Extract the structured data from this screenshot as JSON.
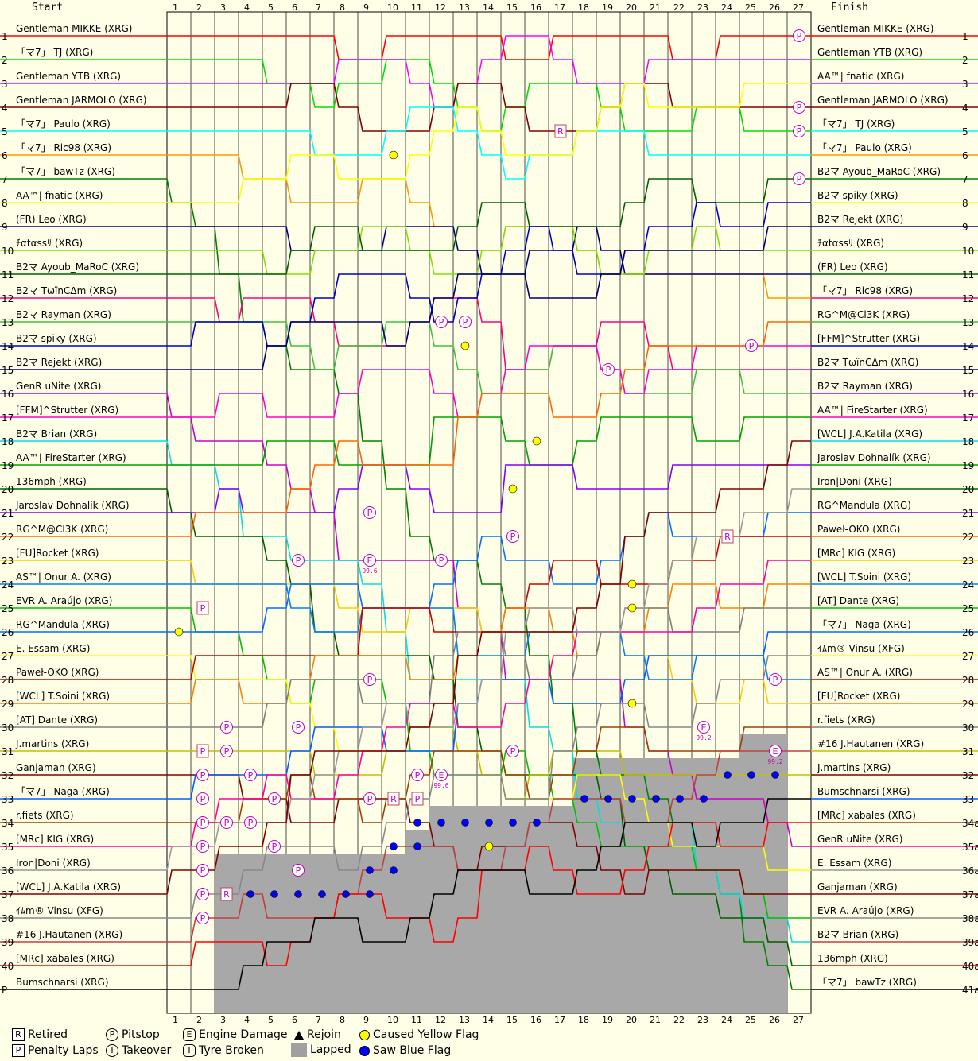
{
  "chart_data": {
    "type": "line",
    "headers": {
      "start": "Start",
      "finish": "Finish"
    },
    "laps": [
      1,
      2,
      3,
      4,
      5,
      6,
      7,
      8,
      9,
      10,
      11,
      12,
      13,
      14,
      15,
      16,
      17,
      18,
      19,
      20,
      21,
      22,
      23,
      24,
      25,
      26,
      27
    ],
    "start_positions": [
      "1",
      "2",
      "3",
      "4",
      "5",
      "6",
      "7",
      "8",
      "9",
      "10",
      "11",
      "12",
      "13",
      "14",
      "15",
      "16",
      "17",
      "18",
      "19",
      "20",
      "21",
      "22",
      "23",
      "24",
      "25",
      "26",
      "27",
      "28",
      "29",
      "30",
      "31",
      "32",
      "33",
      "34",
      "35",
      "36",
      "37",
      "38",
      "39",
      "40",
      "P"
    ],
    "finish_positions": [
      "1",
      "2",
      "3",
      "4",
      "5",
      "6",
      "7",
      "8",
      "9",
      "10",
      "11",
      "12",
      "13",
      "14",
      "15",
      "16",
      "17",
      "18",
      "19",
      "20",
      "21",
      "22",
      "23",
      "24",
      "25",
      "26",
      "27",
      "28",
      "29",
      "30",
      "31",
      "32",
      "33",
      "34a",
      "35a",
      "36a",
      "37a",
      "38a",
      "39a",
      "40a",
      "41a"
    ],
    "start_grid": [
      "Gentleman MIKKE (XRG)",
      "「マ7」 TJ (XRG)",
      "Gentleman YTB (XRG)",
      "Gentleman JARMOLO (XRG)",
      "「マ7」 Paulo (XRG)",
      "「マ7」 Ric98 (XRG)",
      "「マ7」 bawTz (XRG)",
      "AA™| fnatic (XRG)",
      "(FR) Leo (XRG)",
      "ﾁαtαssﾘ (XRG)",
      "B2マ Ayoub_MaRoC (XRG)",
      "B2マ TωïnCΔm (XRG)",
      "B2マ Rayman (XRG)",
      "B2マ spiky (XRG)",
      "B2マ Rejekt (XRG)",
      "GenR uNite (XRG)",
      "[FFM]^Strutter (XRG)",
      "B2マ Brian (XRG)",
      "AA™| FireStarter (XRG)",
      "136mph (XRG)",
      "Jaroslav Dohnalík (XRG)",
      "RG^M@Cl3K (XRG)",
      "[FU]Rocket (XRG)",
      "AS™| Onur A. (XRG)",
      "EVR A. Araújo (XRG)",
      "RG^Mandula (XRG)",
      "E. Essam (XRG)",
      "Paweł-OKO (XRG)",
      "[WCL] T.Soini (XRG)",
      "[AT] Dante (XRG)",
      "J.martins (XRG)",
      "Ganjaman (XRG)",
      "「マ7」 Naga (XRG)",
      "r.fiets (XRG)",
      "[MRc] KIG (XRG)",
      "Iron|Doni (XRG)",
      "[WCL] J.A.Katila (XRG)",
      "ｲﾑm® Vinsu (XFG)",
      "#16 J.Hautanen (XRG)",
      "[MRc] xabales (XRG)",
      "Bumschnarsi (XRG)"
    ],
    "finish_order": [
      "Gentleman MIKKE (XRG)",
      "Gentleman YTB (XRG)",
      "AA™| fnatic (XRG)",
      "Gentleman JARMOLO (XRG)",
      "「マ7」 TJ (XRG)",
      "「マ7」 Paulo (XRG)",
      "B2マ Ayoub_MaRoC (XRG)",
      "B2マ spiky (XRG)",
      "B2マ Rejekt (XRG)",
      "ﾁαtαssﾘ (XRG)",
      "(FR) Leo (XRG)",
      "「マ7」 Ric98 (XRG)",
      "RG^M@Cl3K (XRG)",
      "[FFM]^Strutter (XRG)",
      "B2マ TωïnCΔm (XRG)",
      "B2マ Rayman (XRG)",
      "AA™| FireStarter (XRG)",
      "[WCL] J.A.Katila (XRG)",
      "Jaroslav Dohnalík (XRG)",
      "Iron|Doni (XRG)",
      "RG^Mandula (XRG)",
      "Paweł-OKO (XRG)",
      "[MRc] KIG (XRG)",
      "[WCL] T.Soini (XRG)",
      "[AT] Dante (XRG)",
      "「マ7」 Naga (XRG)",
      "ｲﾑm® Vinsu (XFG)",
      "AS™| Onur A. (XRG)",
      "[FU]Rocket (XRG)",
      "r.fiets (XRG)",
      "#16 J.Hautanen (XRG)",
      "J.martins (XRG)",
      "Bumschnarsi (XRG)",
      "[MRc] xabales (XRG)",
      "GenR uNite (XRG)",
      "E. Essam (XRG)",
      "Ganjaman (XRG)",
      "EVR A. Araújo (XRG)",
      "B2マ Brian (XRG)",
      "136mph (XRG)",
      "「マ7」 bawTz (XRG)"
    ],
    "colors": [
      "#ff0000",
      "#00e000",
      "#ff00ff",
      "#800000",
      "#00ffff",
      "#ff9900",
      "#008000",
      "#ffff00",
      "#000080",
      "#80e000",
      "#006000",
      "#ff0080",
      "#40c040",
      "#0000c0",
      "#000070",
      "#cc00cc",
      "#ff00cc",
      "#00e0e0",
      "#00a000",
      "#006000",
      "#8000ff",
      "#ff6600",
      "#ffcc00",
      "#0080ff",
      "#00c000",
      "#0070ff",
      "#ffff00",
      "#cc0000",
      "#ff8000",
      "#808080",
      "#c0c000",
      "#800000",
      "#0060ff",
      "#a04000",
      "#ff00a0",
      "#999999",
      "#800000",
      "#888888",
      "#c04040",
      "#ff0000",
      "#000000"
    ],
    "lapped_per_lap": [
      0,
      0,
      6,
      6,
      6,
      6,
      6,
      6,
      6,
      6,
      7,
      8,
      8,
      8,
      8,
      8,
      8,
      10,
      10,
      10,
      10,
      10,
      10,
      10,
      11,
      11,
      0
    ],
    "legend": [
      {
        "symbol": "R",
        "shape": "box",
        "label": "Retired"
      },
      {
        "symbol": "P",
        "shape": "circle",
        "label": "Pitstop"
      },
      {
        "symbol": "E",
        "shape": "pentagon",
        "label": "Engine Damage"
      },
      {
        "symbol": "",
        "shape": "triangle",
        "label": "Rejoin"
      },
      {
        "symbol": "",
        "shape": "yellow-dot",
        "label": "Caused Yellow Flag"
      },
      {
        "symbol": "P",
        "shape": "box",
        "label": "Penalty Laps"
      },
      {
        "symbol": "T",
        "shape": "circle",
        "label": "Takeover"
      },
      {
        "symbol": "T",
        "shape": "pentagon",
        "label": "Tyre Broken"
      },
      {
        "symbol": "",
        "shape": "grey-box",
        "label": "Lapped"
      },
      {
        "symbol": "",
        "shape": "blue-dot",
        "label": "Saw Blue Flag"
      }
    ],
    "markers": [
      {
        "type": "pitstop",
        "lap": 27,
        "position": 1
      },
      {
        "type": "pitstop",
        "lap": 27,
        "position": 4
      },
      {
        "type": "pitstop",
        "lap": 27,
        "position": 5
      },
      {
        "type": "pitstop",
        "lap": 27,
        "position": 7
      },
      {
        "type": "retired",
        "lap": 17,
        "position": 5
      },
      {
        "type": "retired",
        "lap": 24,
        "position": 22
      },
      {
        "type": "retired",
        "lap": 10,
        "position": 33
      },
      {
        "type": "retired",
        "lap": 3,
        "position": 37
      },
      {
        "type": "penalty",
        "lap": 2,
        "position": 31
      },
      {
        "type": "penalty",
        "lap": 2,
        "position": 25
      },
      {
        "type": "penalty",
        "lap": 11,
        "position": 33
      },
      {
        "type": "yellow",
        "lap": 10,
        "position": 6
      },
      {
        "type": "yellow",
        "lap": 13,
        "position": 14
      },
      {
        "type": "yellow",
        "lap": 19,
        "position": 15
      },
      {
        "type": "yellow",
        "lap": 16,
        "position": 18
      },
      {
        "type": "yellow",
        "lap": 15,
        "position": 20
      },
      {
        "type": "yellow",
        "lap": 9,
        "position": 21
      },
      {
        "type": "yellow",
        "lap": 12,
        "position": 23
      },
      {
        "type": "yellow",
        "lap": 20,
        "position": 24
      },
      {
        "type": "yellow",
        "lap": 20,
        "position": 25
      },
      {
        "type": "yellow",
        "lap": 20,
        "position": 29
      },
      {
        "type": "yellow",
        "lap": 14,
        "position": 35
      },
      {
        "type": "yellow",
        "lap": 1,
        "position": 26
      },
      {
        "type": "pitstop",
        "lap": 12,
        "position": 13
      },
      {
        "type": "pitstop",
        "lap": 13,
        "position": 13
      },
      {
        "type": "pitstop",
        "lap": 25,
        "position": 14
      },
      {
        "type": "pitstop",
        "lap": 19,
        "position": 15
      },
      {
        "type": "pitstop",
        "lap": 9,
        "position": 21
      },
      {
        "type": "pitstop",
        "lap": 15,
        "position": 22
      },
      {
        "type": "pitstop",
        "lap": 6,
        "position": 23
      },
      {
        "type": "pitstop",
        "lap": 12,
        "position": 23
      },
      {
        "type": "pitstop",
        "lap": 9,
        "position": 28
      },
      {
        "type": "pitstop",
        "lap": 26,
        "position": 28
      },
      {
        "type": "pitstop",
        "lap": 6,
        "position": 30
      },
      {
        "type": "pitstop",
        "lap": 3,
        "position": 30
      },
      {
        "type": "pitstop",
        "lap": 3,
        "position": 31
      },
      {
        "type": "pitstop",
        "lap": 15,
        "position": 31
      },
      {
        "type": "pitstop",
        "lap": 2,
        "position": 32
      },
      {
        "type": "pitstop",
        "lap": 4,
        "position": 32
      },
      {
        "type": "pitstop",
        "lap": 11,
        "position": 32
      },
      {
        "type": "pitstop",
        "lap": 2,
        "position": 33
      },
      {
        "type": "pitstop",
        "lap": 5,
        "position": 33
      },
      {
        "type": "pitstop",
        "lap": 9,
        "position": 33
      },
      {
        "type": "pitstop",
        "lap": 2,
        "position": 34
      },
      {
        "type": "pitstop",
        "lap": 3,
        "position": 34
      },
      {
        "type": "pitstop",
        "lap": 4,
        "position": 34
      },
      {
        "type": "pitstop",
        "lap": 2,
        "position": 35
      },
      {
        "type": "pitstop",
        "lap": 5,
        "position": 35
      },
      {
        "type": "pitstop",
        "lap": 2,
        "position": 36
      },
      {
        "type": "pitstop",
        "lap": 6,
        "position": 36
      },
      {
        "type": "pitstop",
        "lap": 2,
        "position": 37
      },
      {
        "type": "pitstop",
        "lap": 2,
        "position": 38
      },
      {
        "type": "engine",
        "lap": 9,
        "position": 23,
        "label": "99.6"
      },
      {
        "type": "engine",
        "lap": 12,
        "position": 32,
        "label": "99.6"
      },
      {
        "type": "engine",
        "lap": 23,
        "position": 30,
        "label": "99.2"
      },
      {
        "type": "engine",
        "lap": 26,
        "position": 31,
        "label": "99.2"
      }
    ],
    "blue_flags": [
      {
        "laps": [
          4,
          5,
          6,
          7,
          8,
          9
        ],
        "position": 37
      },
      {
        "laps": [
          9,
          10
        ],
        "position": 36
      },
      {
        "laps": [
          10,
          11
        ],
        "position": 35
      },
      {
        "laps": [
          11,
          12,
          13,
          14,
          15,
          16
        ],
        "position": 34
      },
      {
        "laps": [
          18,
          19,
          20,
          21,
          22,
          23
        ],
        "position": 33
      },
      {
        "laps": [
          24,
          25,
          26
        ],
        "position": 32
      }
    ]
  }
}
